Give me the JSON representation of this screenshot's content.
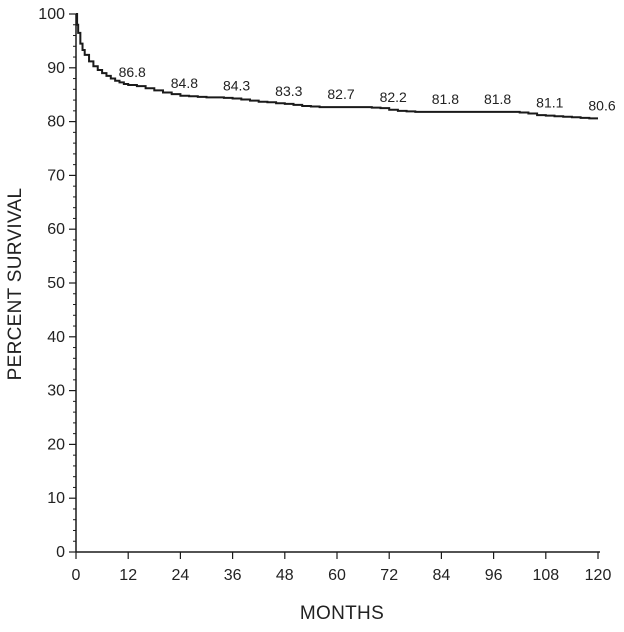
{
  "chart_data": {
    "type": "line",
    "title": "",
    "xlabel": "MONTHS",
    "ylabel": "PERCENT SURVIVAL",
    "xlim": [
      0,
      120
    ],
    "ylim": [
      0,
      100
    ],
    "x_ticks": [
      0,
      12,
      24,
      36,
      48,
      60,
      72,
      84,
      96,
      108,
      120
    ],
    "y_ticks": [
      0,
      10,
      20,
      30,
      40,
      50,
      60,
      70,
      80,
      90,
      100
    ],
    "grid": false,
    "legend": "none",
    "line_color": "#1a1a1a",
    "series": [
      {
        "x": [
          0,
          0.25,
          0.5,
          1,
          1.5,
          2,
          3,
          4,
          5,
          6,
          7,
          8,
          9,
          10,
          11,
          12,
          14,
          16,
          18,
          20,
          22,
          24,
          26,
          28,
          30,
          32,
          34,
          36,
          38,
          40,
          42,
          44,
          46,
          48,
          50,
          52,
          54,
          56,
          58,
          60,
          62,
          64,
          66,
          68,
          70,
          72,
          74,
          76,
          78,
          80,
          82,
          84,
          86,
          88,
          90,
          92,
          94,
          96,
          98,
          100,
          102,
          104,
          106,
          108,
          110,
          112,
          114,
          116,
          118,
          120
        ],
        "y": [
          100,
          98,
          96.5,
          94.5,
          93.3,
          92.4,
          91.2,
          90.3,
          89.6,
          89.0,
          88.5,
          88.0,
          87.6,
          87.3,
          87.0,
          86.8,
          86.6,
          86.2,
          85.8,
          85.4,
          85.1,
          84.8,
          84.7,
          84.6,
          84.5,
          84.5,
          84.4,
          84.3,
          84.1,
          83.9,
          83.7,
          83.6,
          83.4,
          83.3,
          83.1,
          82.9,
          82.8,
          82.7,
          82.7,
          82.7,
          82.7,
          82.7,
          82.7,
          82.6,
          82.5,
          82.2,
          82.0,
          81.9,
          81.8,
          81.8,
          81.8,
          81.8,
          81.8,
          81.8,
          81.8,
          81.8,
          81.8,
          81.8,
          81.8,
          81.8,
          81.7,
          81.5,
          81.2,
          81.1,
          81.0,
          80.9,
          80.8,
          80.7,
          80.6,
          80.6
        ]
      }
    ],
    "annotations": [
      {
        "x": 12,
        "y": 86.8,
        "label": "86.8"
      },
      {
        "x": 24,
        "y": 84.8,
        "label": "84.8"
      },
      {
        "x": 36,
        "y": 84.3,
        "label": "84.3"
      },
      {
        "x": 48,
        "y": 83.3,
        "label": "83.3"
      },
      {
        "x": 60,
        "y": 82.7,
        "label": "82.7"
      },
      {
        "x": 72,
        "y": 82.2,
        "label": "82.2"
      },
      {
        "x": 84,
        "y": 81.8,
        "label": "81.8"
      },
      {
        "x": 96,
        "y": 81.8,
        "label": "81.8"
      },
      {
        "x": 108,
        "y": 81.1,
        "label": "81.1"
      },
      {
        "x": 120,
        "y": 80.6,
        "label": "80.6"
      }
    ]
  }
}
